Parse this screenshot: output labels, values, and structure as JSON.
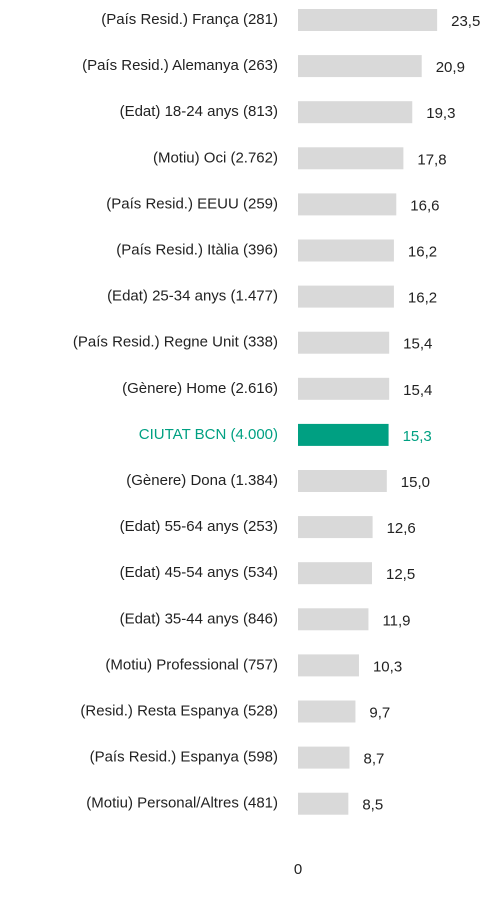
{
  "chart_data": {
    "type": "barh",
    "categories": [
      "(País Resid.) França (281)",
      "(País Resid.) Alemanya (263)",
      "(Edat) 18-24 anys (813)",
      "(Motiu) Oci (2.762)",
      "(País Resid.) EEUU (259)",
      "(País Resid.) Itàlia (396)",
      "(Edat) 25-34 anys  (1.477)",
      "(País Resid.) Regne Unit (338)",
      "(Gènere) Home (2.616)",
      "CIUTAT BCN (4.000)",
      "(Gènere) Dona (1.384)",
      "(Edat) 55-64 anys (253)",
      "(Edat) 45-54 anys (534)",
      "(Edat) 35-44 anys (846)",
      "(Motiu) Professional (757)",
      "(Resid.) Resta Espanya (528)",
      "(País Resid.) Espanya (598)",
      "(Motiu) Personal/Altres (481)"
    ],
    "values": [
      23.5,
      20.9,
      19.3,
      17.8,
      16.6,
      16.2,
      16.2,
      15.4,
      15.4,
      15.3,
      15.0,
      12.6,
      12.5,
      11.9,
      10.3,
      9.7,
      8.7,
      8.5
    ],
    "value_labels": [
      "23,5",
      "20,9",
      "19,3",
      "17,8",
      "16,6",
      "16,2",
      "16,2",
      "15,4",
      "15,4",
      "15,3",
      "15,0",
      "12,6",
      "12,5",
      "11,9",
      "10,3",
      "9,7",
      "8,7",
      "8,5"
    ],
    "color": "#d9d9d9",
    "highlight_index": 9,
    "highlight_color": "#00a082",
    "xlim": [
      0,
      25
    ],
    "xticks": [
      0
    ],
    "grid": false
  }
}
